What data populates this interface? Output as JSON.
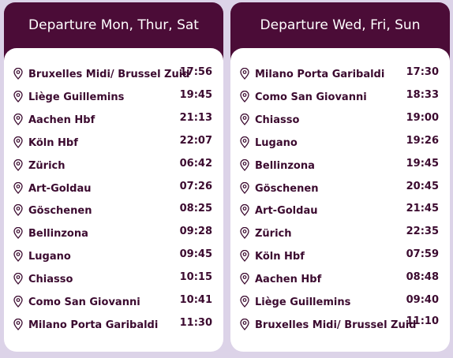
{
  "columns": [
    {
      "title": "Departure Mon, Thur, Sat",
      "stops": [
        {
          "station": "Bruxelles Midi/ Brussel Zuid",
          "time": "17:56"
        },
        {
          "station": "Liège Guillemins",
          "time": "19:45"
        },
        {
          "station": "Aachen Hbf",
          "time": "21:13"
        },
        {
          "station": "Köln Hbf",
          "time": "22:07"
        },
        {
          "station": "Zürich",
          "time": "06:42"
        },
        {
          "station": "Art-Goldau",
          "time": "07:26"
        },
        {
          "station": "Göschenen",
          "time": "08:25"
        },
        {
          "station": "Bellinzona",
          "time": "09:28"
        },
        {
          "station": "Lugano",
          "time": "09:45"
        },
        {
          "station": "Chiasso",
          "time": "10:15"
        },
        {
          "station": "Como San Giovanni",
          "time": "10:41"
        },
        {
          "station": "Milano Porta Garibaldi",
          "time": "11:30"
        }
      ]
    },
    {
      "title": "Departure Wed, Fri, Sun",
      "stops": [
        {
          "station": "Milano Porta Garibaldi",
          "time": "17:30"
        },
        {
          "station": "Como San Giovanni",
          "time": "18:33"
        },
        {
          "station": "Chiasso",
          "time": "19:00"
        },
        {
          "station": "Lugano",
          "time": "19:26"
        },
        {
          "station": "Bellinzona",
          "time": "19:45"
        },
        {
          "station": "Göschenen",
          "time": "20:45"
        },
        {
          "station": "Art-Goldau",
          "time": "21:45"
        },
        {
          "station": "Zürich",
          "time": "22:35"
        },
        {
          "station": "Köln Hbf",
          "time": "07:59"
        },
        {
          "station": "Aachen Hbf",
          "time": "08:48"
        },
        {
          "station": "Liège Guillemins",
          "time": "09:40"
        },
        {
          "station": "Bruxelles Midi/ Brussel Zuid",
          "time": "11:10"
        }
      ]
    }
  ]
}
